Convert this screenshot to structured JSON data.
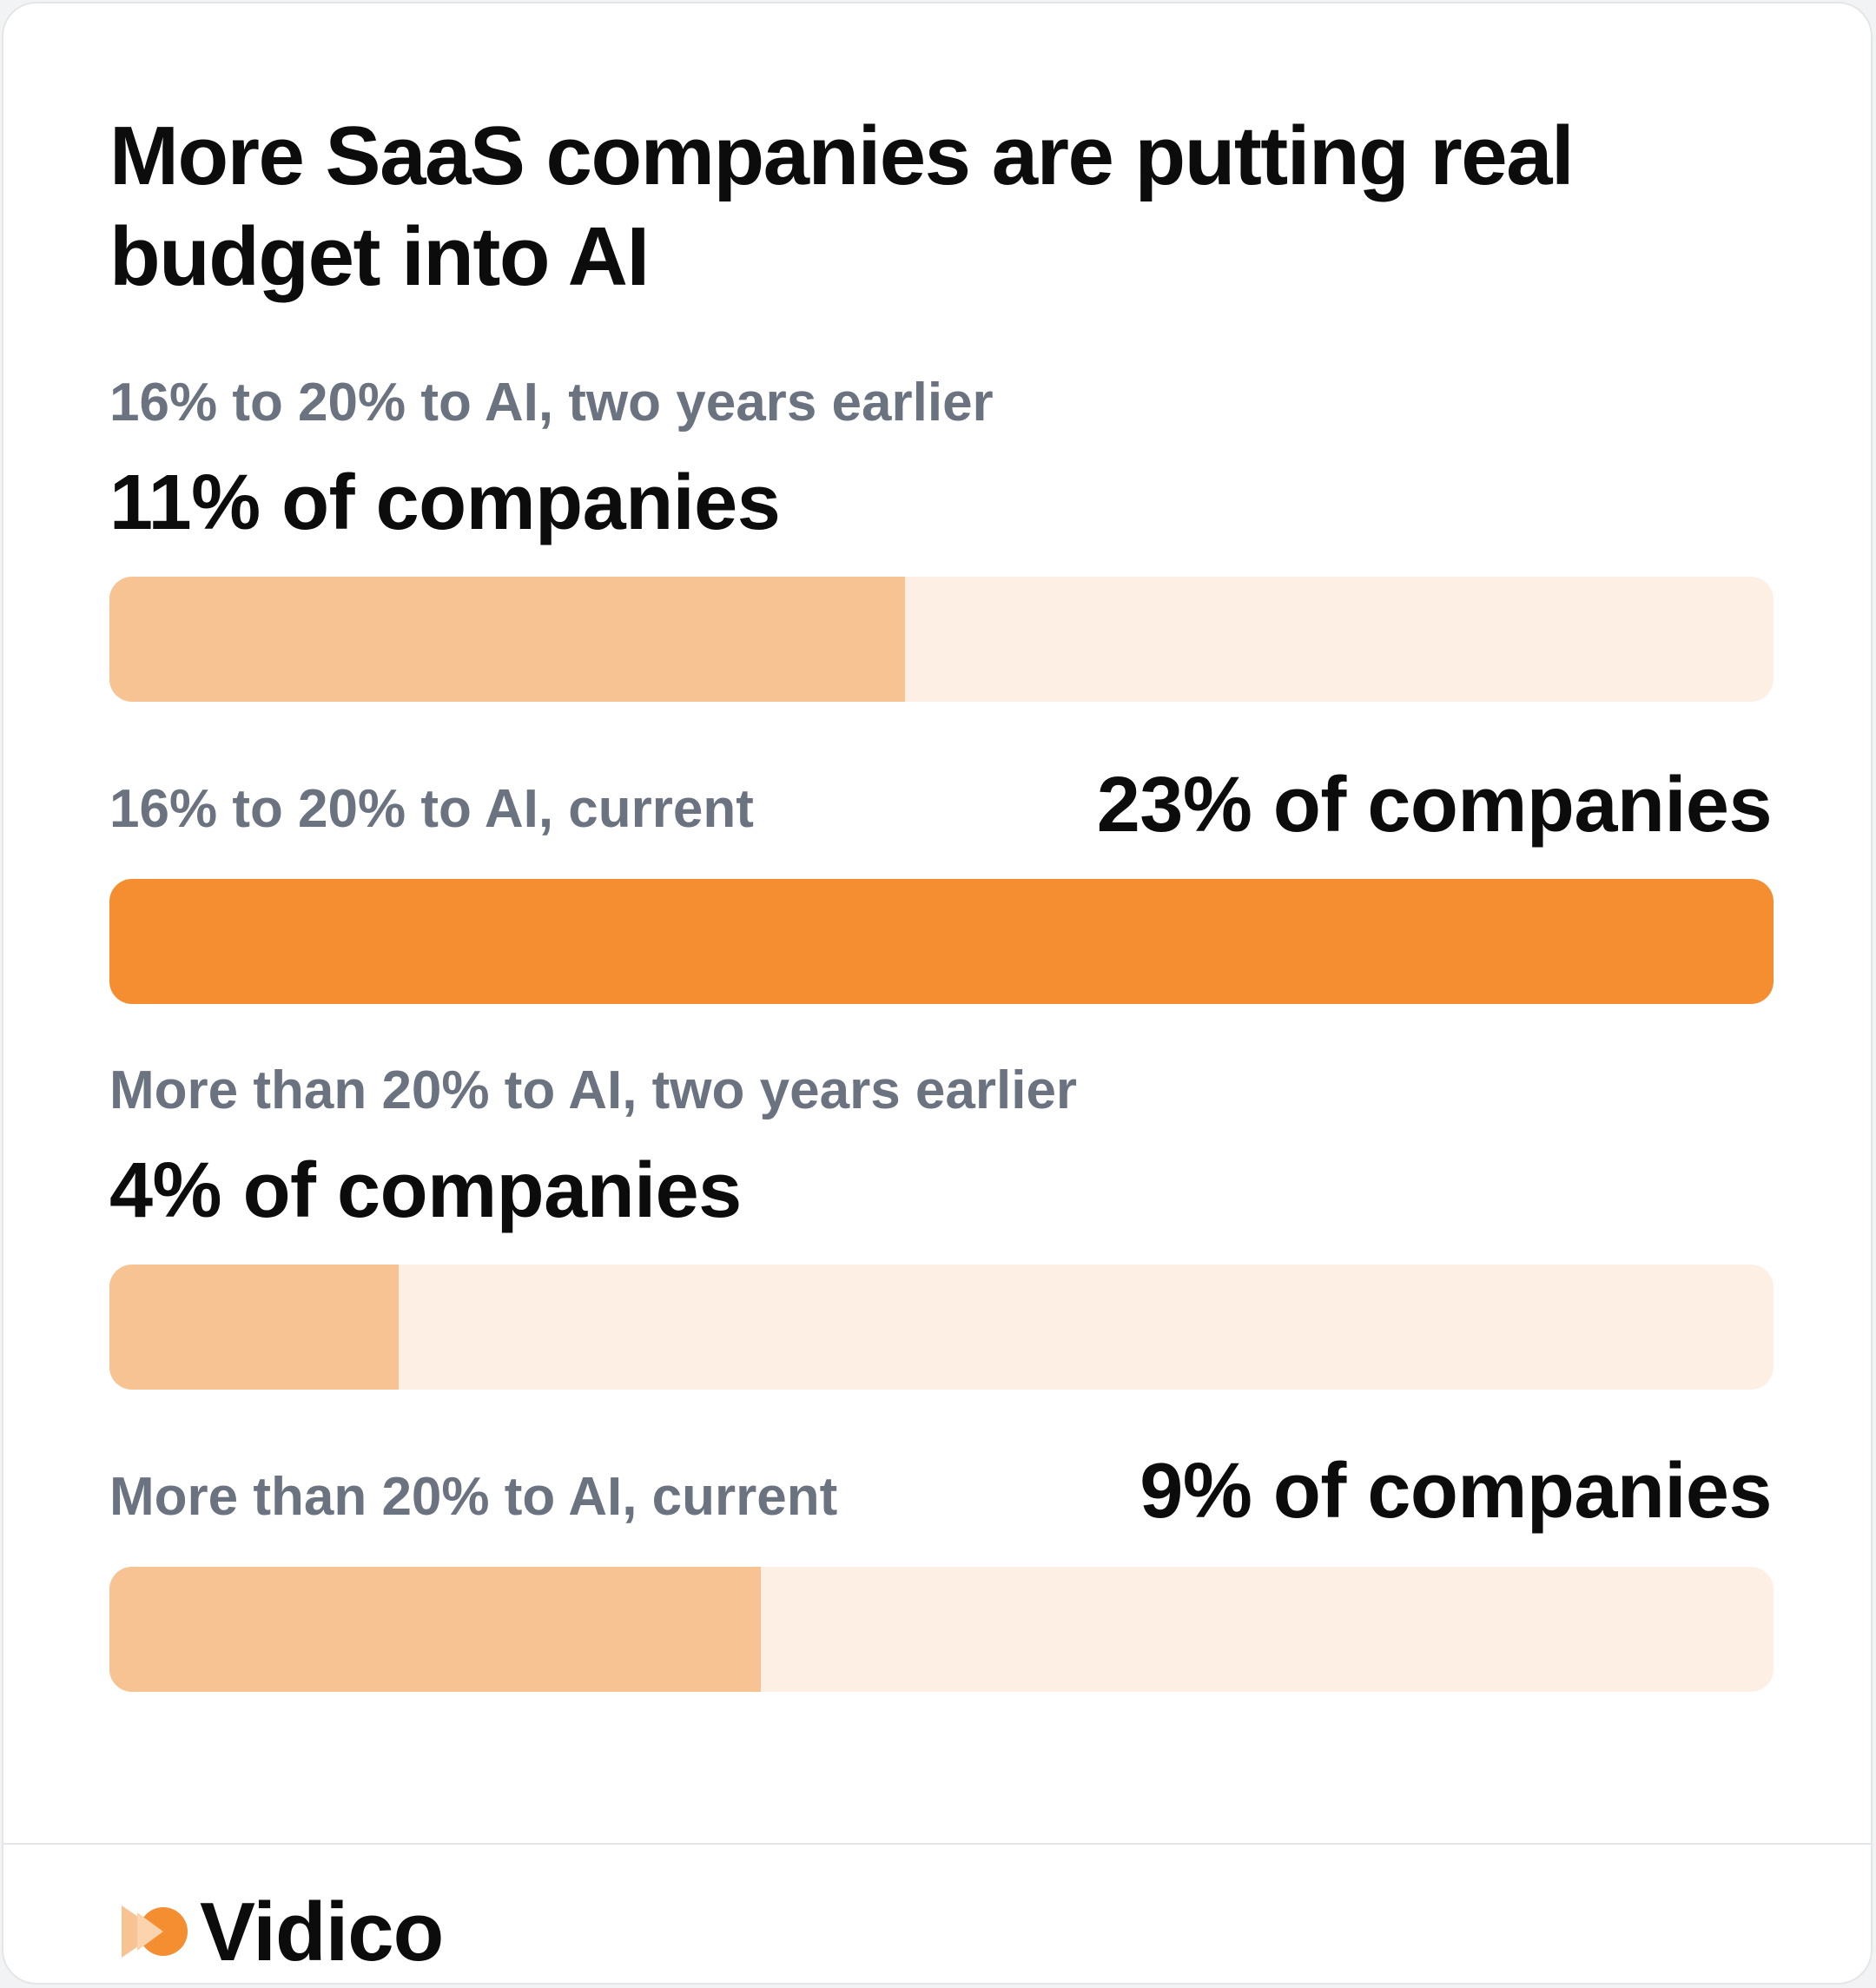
{
  "chart_data": {
    "type": "bar",
    "title": "More SaaS companies are putting real budget into AI",
    "categories": [
      "16% to 20% to AI, two years earlier",
      "16% to 20% to AI, current",
      "More than 20% to AI, two years earlier",
      "More than 20% to AI, current"
    ],
    "values": [
      11,
      23,
      4,
      9
    ],
    "value_labels": [
      "11% of companies",
      "23% of companies",
      "4% of companies",
      "9% of companies"
    ],
    "highlighted_index": 1,
    "xlim": [
      0,
      23
    ],
    "orientation": "horizontal"
  },
  "colors": {
    "bar_fill": "#f8c393",
    "bar_highlight": "#f48e31",
    "track": "#fdefe4",
    "label_text": "#6b7280",
    "value_text": "#0c0c0c"
  },
  "brand": {
    "name": "Vidico",
    "logo_icon": "vidico-logo-icon"
  }
}
